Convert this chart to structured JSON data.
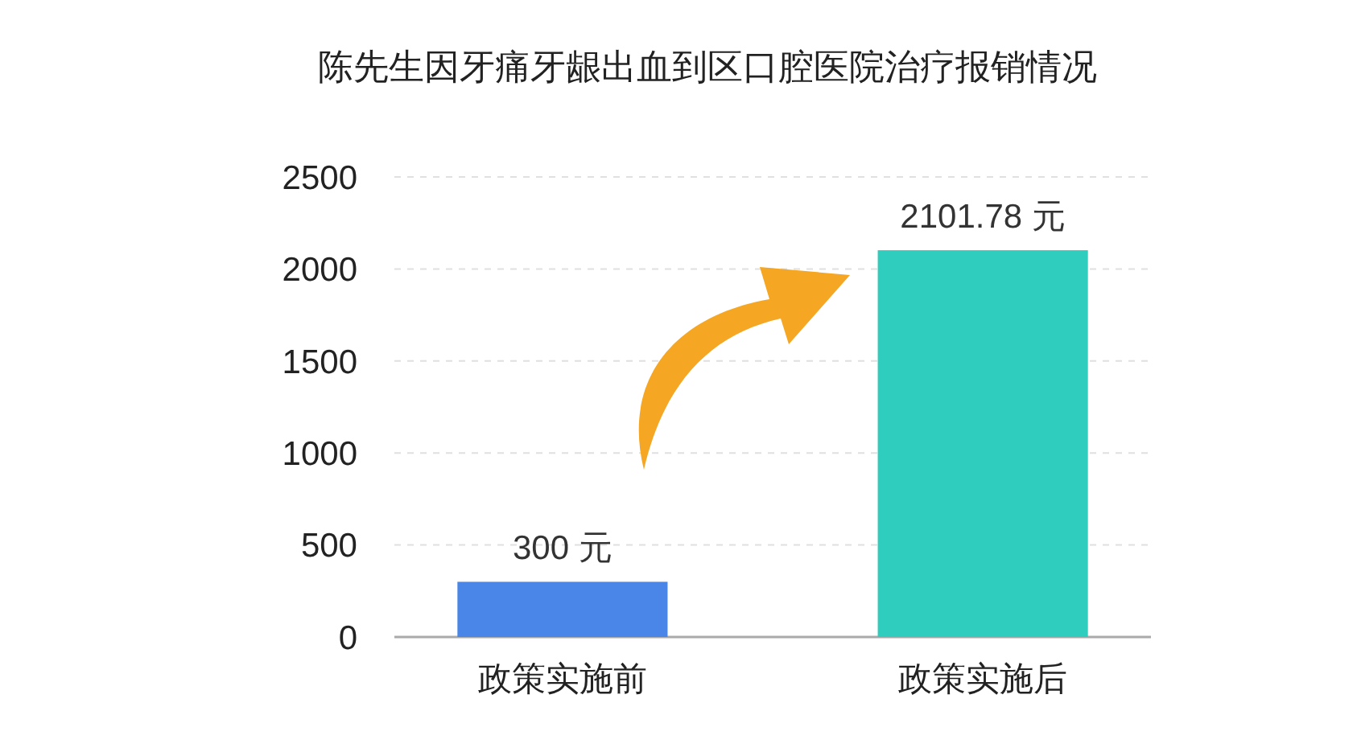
{
  "chart_data": {
    "type": "bar",
    "title": "陈先生因牙痛牙龈出血到区口腔医院治疗报销情况",
    "categories": [
      "政策实施前",
      "政策实施后"
    ],
    "values": [
      300,
      2101.78
    ],
    "colors": [
      "#4a86e8",
      "#2ecdbd"
    ],
    "value_labels": [
      "300 元",
      "2101.78 元"
    ],
    "ylim": [
      0,
      2500
    ],
    "yticks": [
      0,
      500,
      1000,
      1500,
      2000,
      2500
    ],
    "grid": "y"
  }
}
